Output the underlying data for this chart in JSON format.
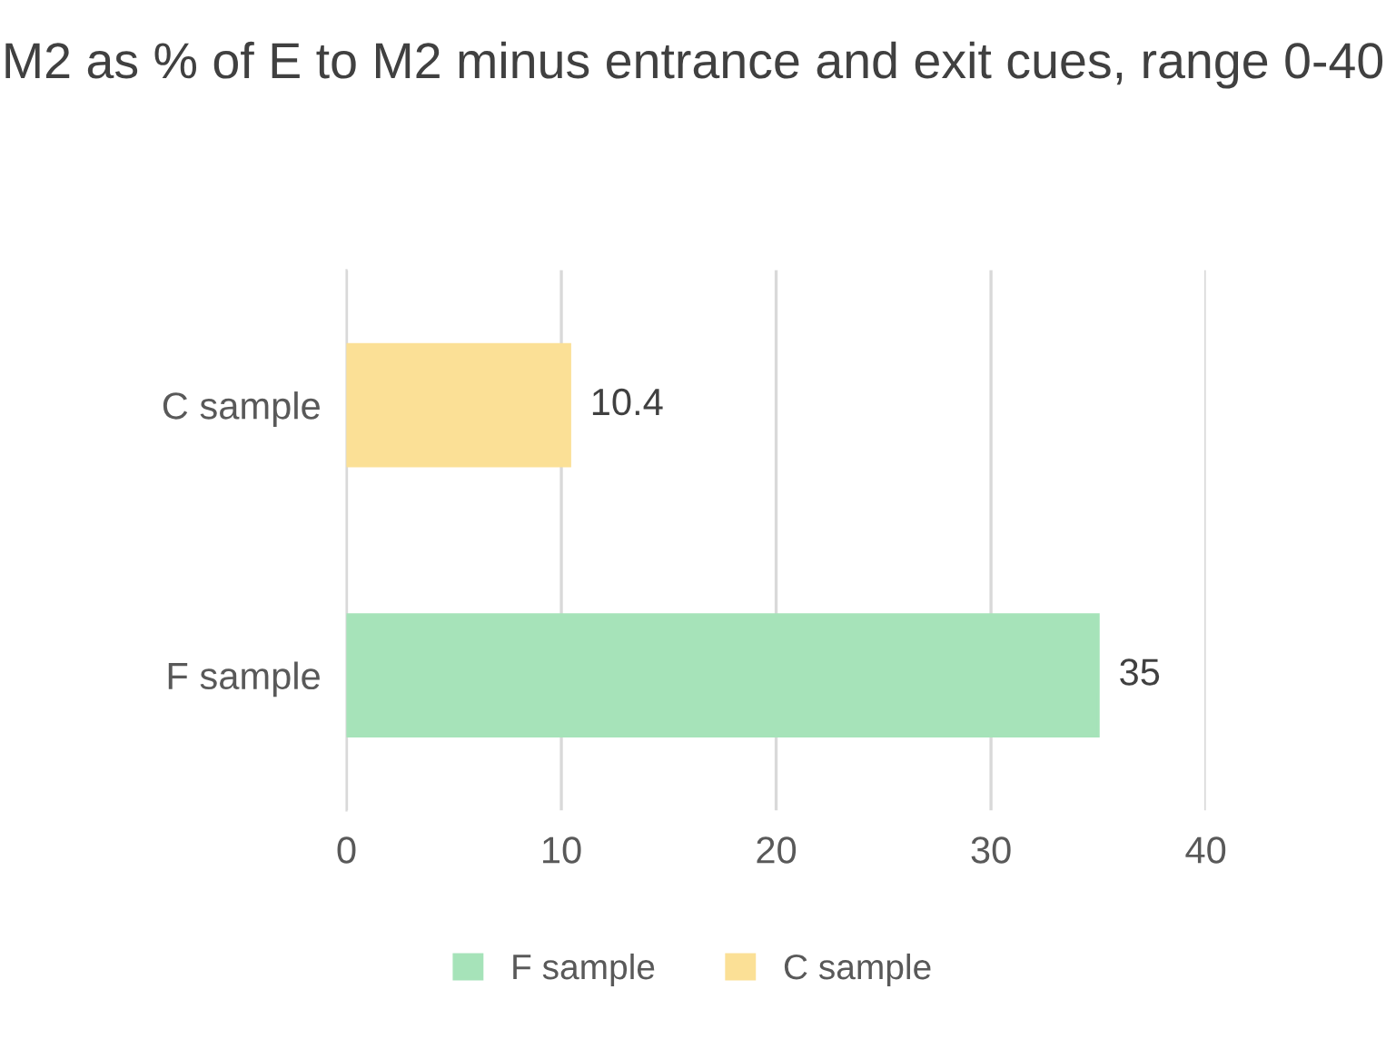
{
  "chart_data": {
    "type": "bar",
    "orientation": "horizontal",
    "title": "M2 as % of E to M2 minus entrance and exit cues, range 0-40",
    "categories": [
      "C sample",
      "F sample"
    ],
    "series": [
      {
        "name": "F sample",
        "color": "#a6e3b9",
        "values": [
          null,
          35
        ]
      },
      {
        "name": "C sample",
        "color": "#fbe096",
        "values": [
          10.4,
          null
        ]
      }
    ],
    "xlim": [
      0,
      40
    ],
    "xticks": [
      0,
      10,
      20,
      30,
      40
    ],
    "grid": "x",
    "legend": "bottom",
    "data_labels": true
  }
}
